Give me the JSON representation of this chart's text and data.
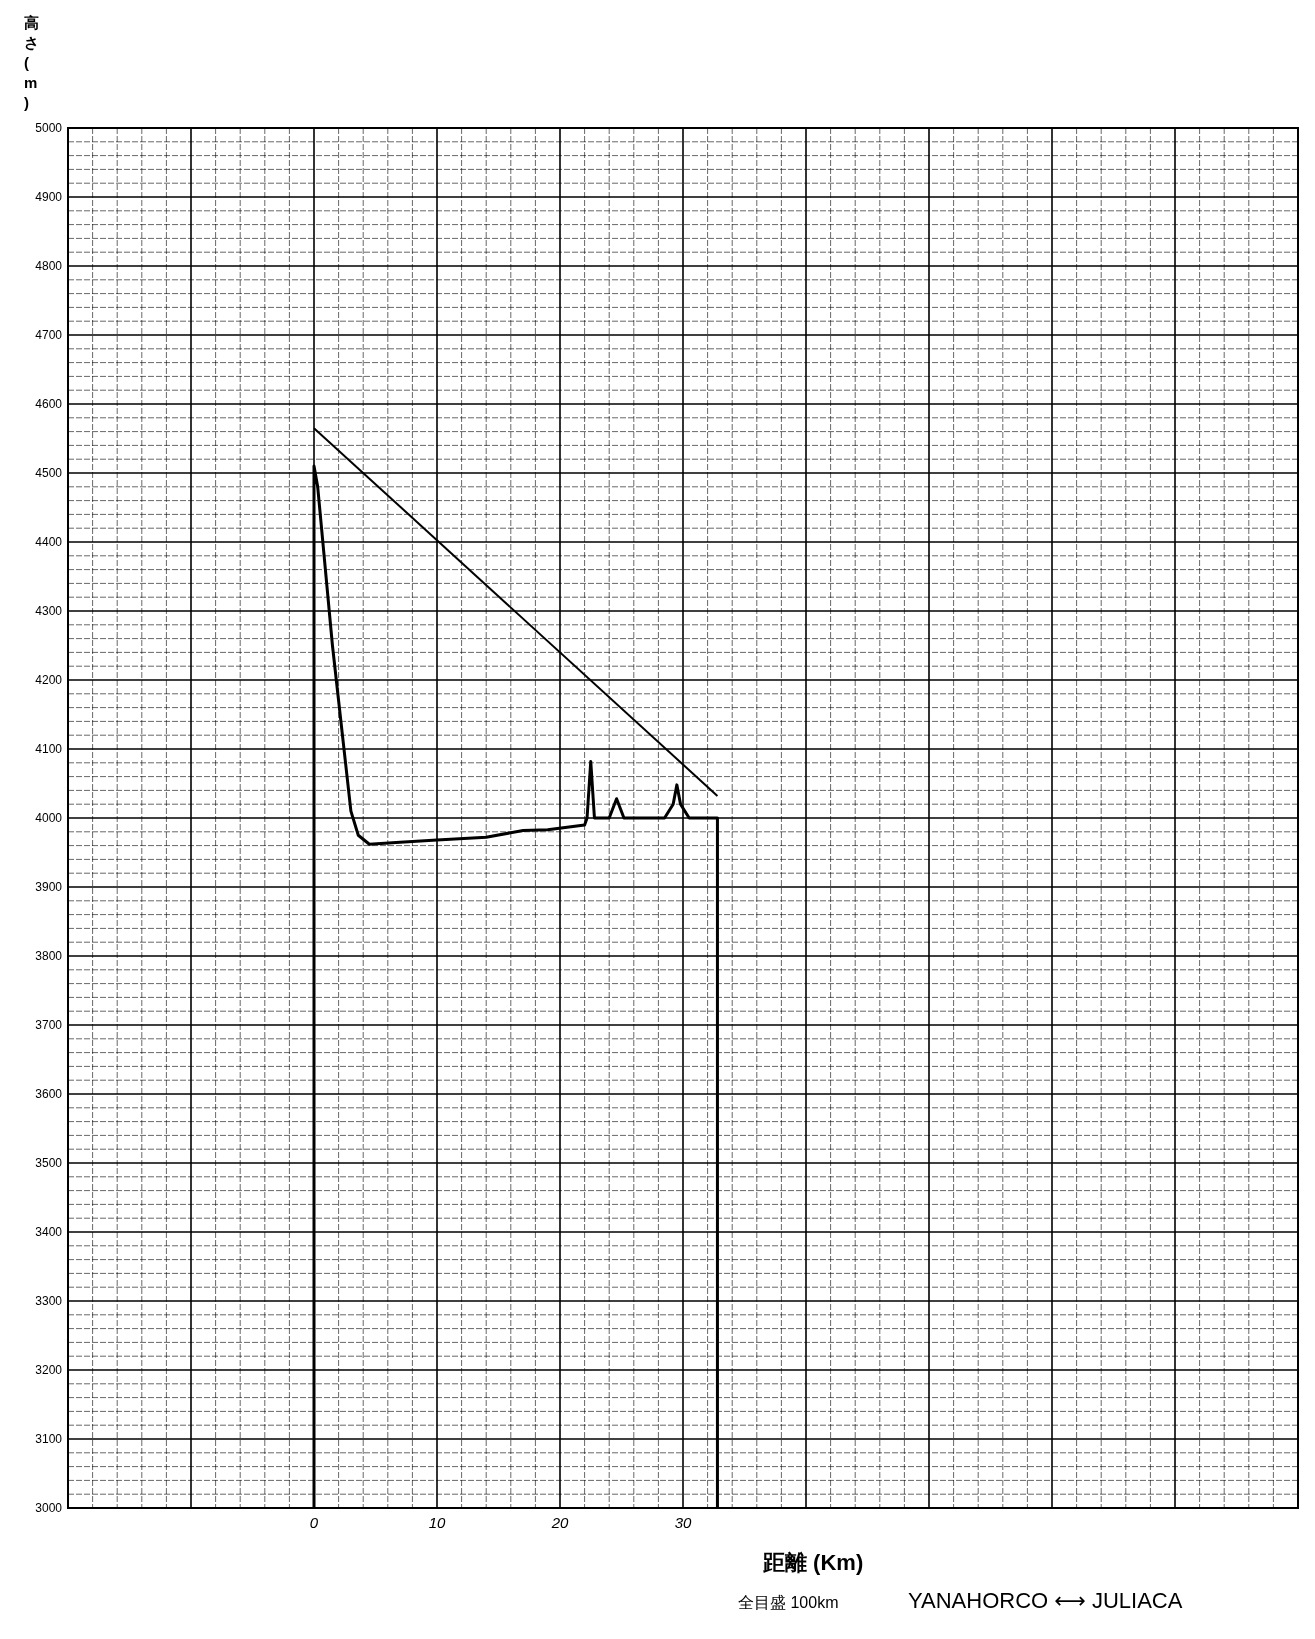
{
  "chart_data": {
    "type": "line",
    "xlabel": "距離 (Km)",
    "ylabel": "高さ(m)",
    "annotations": [
      "全目盛 100km",
      "YANAHORCO ⟷ JULIACA"
    ],
    "xlim": [
      -20,
      80
    ],
    "xticks": [
      0,
      10,
      20,
      30
    ],
    "ylim": [
      3000,
      5000
    ],
    "yticks": [
      3000,
      3100,
      3200,
      3300,
      3400,
      3500,
      3600,
      3700,
      3800,
      3900,
      4000,
      4100,
      4200,
      4300,
      4400,
      4500,
      4600,
      4700,
      4800,
      4900,
      5000
    ],
    "grid": true,
    "marker": "none",
    "line_style": "solid",
    "series": [
      {
        "color": "#000000",
        "x": [
          0,
          0,
          0.3,
          1.5,
          3,
          3.6,
          4.5,
          7,
          10,
          14,
          17,
          19,
          22,
          22.2,
          22.5,
          22.8,
          24,
          24.6,
          25.2,
          28.5,
          29.2,
          29.5,
          29.8,
          30.5,
          32.8,
          32.8
        ],
        "values": [
          3000,
          4510,
          4480,
          4250,
          4010,
          3975,
          3962,
          3965,
          3968,
          3972,
          3982,
          3983,
          3990,
          4000,
          4082,
          4000,
          4000,
          4028,
          4000,
          4000,
          4020,
          4048,
          4020,
          4000,
          4000,
          3000
        ]
      },
      {
        "color": "#000000",
        "x": [
          0,
          32.8
        ],
        "values": [
          4565,
          4032
        ]
      }
    ]
  }
}
